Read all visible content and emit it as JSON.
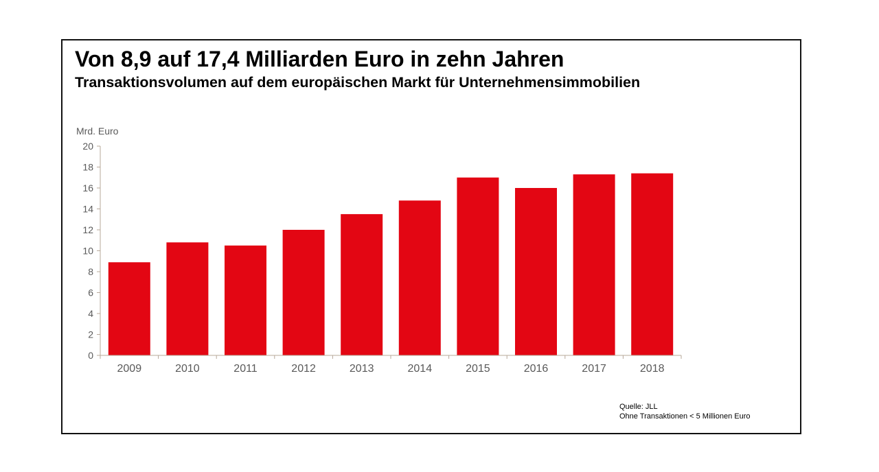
{
  "header": {
    "title": "Von 8,9 auf 17,4 Milliarden Euro in zehn Jahren",
    "subtitle": "Transaktionsvolumen auf dem europäischen Markt für Unternehmensimmobilien"
  },
  "footer": {
    "source": "Quelle: JLL",
    "note": "Ohne Transaktionen < 5 Millionen Euro"
  },
  "colors": {
    "bar": "#e30613",
    "axis": "#b7a89a",
    "tick_text": "#595959"
  },
  "chart_data": {
    "type": "bar",
    "title": "Von 8,9 auf 17,4 Milliarden Euro in zehn Jahren",
    "subtitle": "Transaktionsvolumen auf dem europäischen Markt für Unternehmensimmobilien",
    "xlabel": "",
    "ylabel": "Mrd. Euro",
    "categories": [
      "2009",
      "2010",
      "2011",
      "2012",
      "2013",
      "2014",
      "2015",
      "2016",
      "2017",
      "2018"
    ],
    "values": [
      8.9,
      10.8,
      10.5,
      12.0,
      13.5,
      14.8,
      17.0,
      16.0,
      17.3,
      17.4
    ],
    "ylim": [
      0,
      20
    ],
    "yticks": [
      0,
      2,
      4,
      6,
      8,
      10,
      12,
      14,
      16,
      18,
      20
    ],
    "grid": false,
    "legend": "none"
  }
}
